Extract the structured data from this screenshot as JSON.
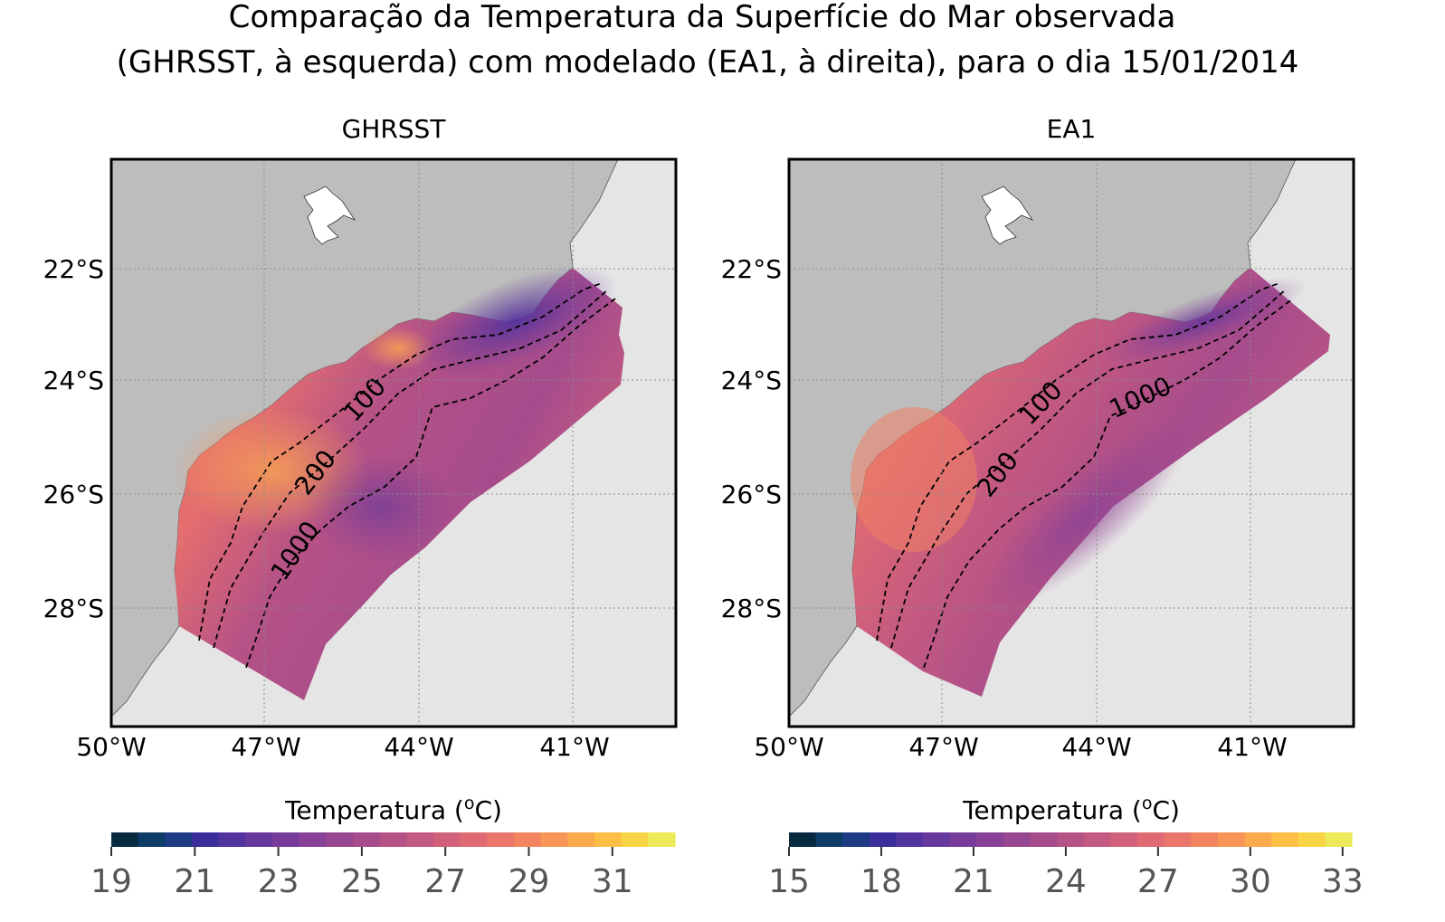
{
  "figure": {
    "title_line1": "Comparação da Temperatura da Superfície do Mar observada",
    "title_line2": "(GHRSST, à esquerda) com modelado (EA1, à direita), para o dia 15/01/2014"
  },
  "colors": {
    "land": "#bdbdbd",
    "ocean_mask": "#e5e5e5",
    "grid": "#8a8a8a",
    "isobath": "#000000"
  },
  "maps": [
    {
      "title": "GHRSST",
      "lat_ticks": [
        "22°S",
        "24°S",
        "26°S",
        "28°S"
      ],
      "lon_ticks": [
        "50°W",
        "47°W",
        "44°W",
        "41°W"
      ],
      "isobath_labels": [
        "100",
        "200",
        "1000"
      ],
      "colorbar": {
        "label": "Temperatura (°C)",
        "ticks": [
          "19",
          "21",
          "23",
          "25",
          "27",
          "29",
          "31"
        ],
        "range": [
          19,
          32.5
        ]
      }
    },
    {
      "title": "EA1",
      "lat_ticks": [
        "22°S",
        "24°S",
        "26°S",
        "28°S"
      ],
      "lon_ticks": [
        "50°W",
        "47°W",
        "44°W",
        "41°W"
      ],
      "isobath_labels": [
        "100",
        "200",
        "1000"
      ],
      "colorbar": {
        "label": "Temperatura (°C)",
        "ticks": [
          "15",
          "18",
          "21",
          "24",
          "27",
          "30",
          "33"
        ],
        "range": [
          15,
          33.3
        ]
      }
    }
  ],
  "colormap": [
    "#072a40",
    "#0d3d66",
    "#1d3a82",
    "#3a2f9a",
    "#53339d",
    "#66379c",
    "#773c9a",
    "#874196",
    "#974691",
    "#a64c8c",
    "#b55286",
    "#c35981",
    "#d1617b",
    "#de6a74",
    "#ea756b",
    "#f38461",
    "#f89657",
    "#fba94d",
    "#fdbe45",
    "#f8d446",
    "#ecea58"
  ]
}
